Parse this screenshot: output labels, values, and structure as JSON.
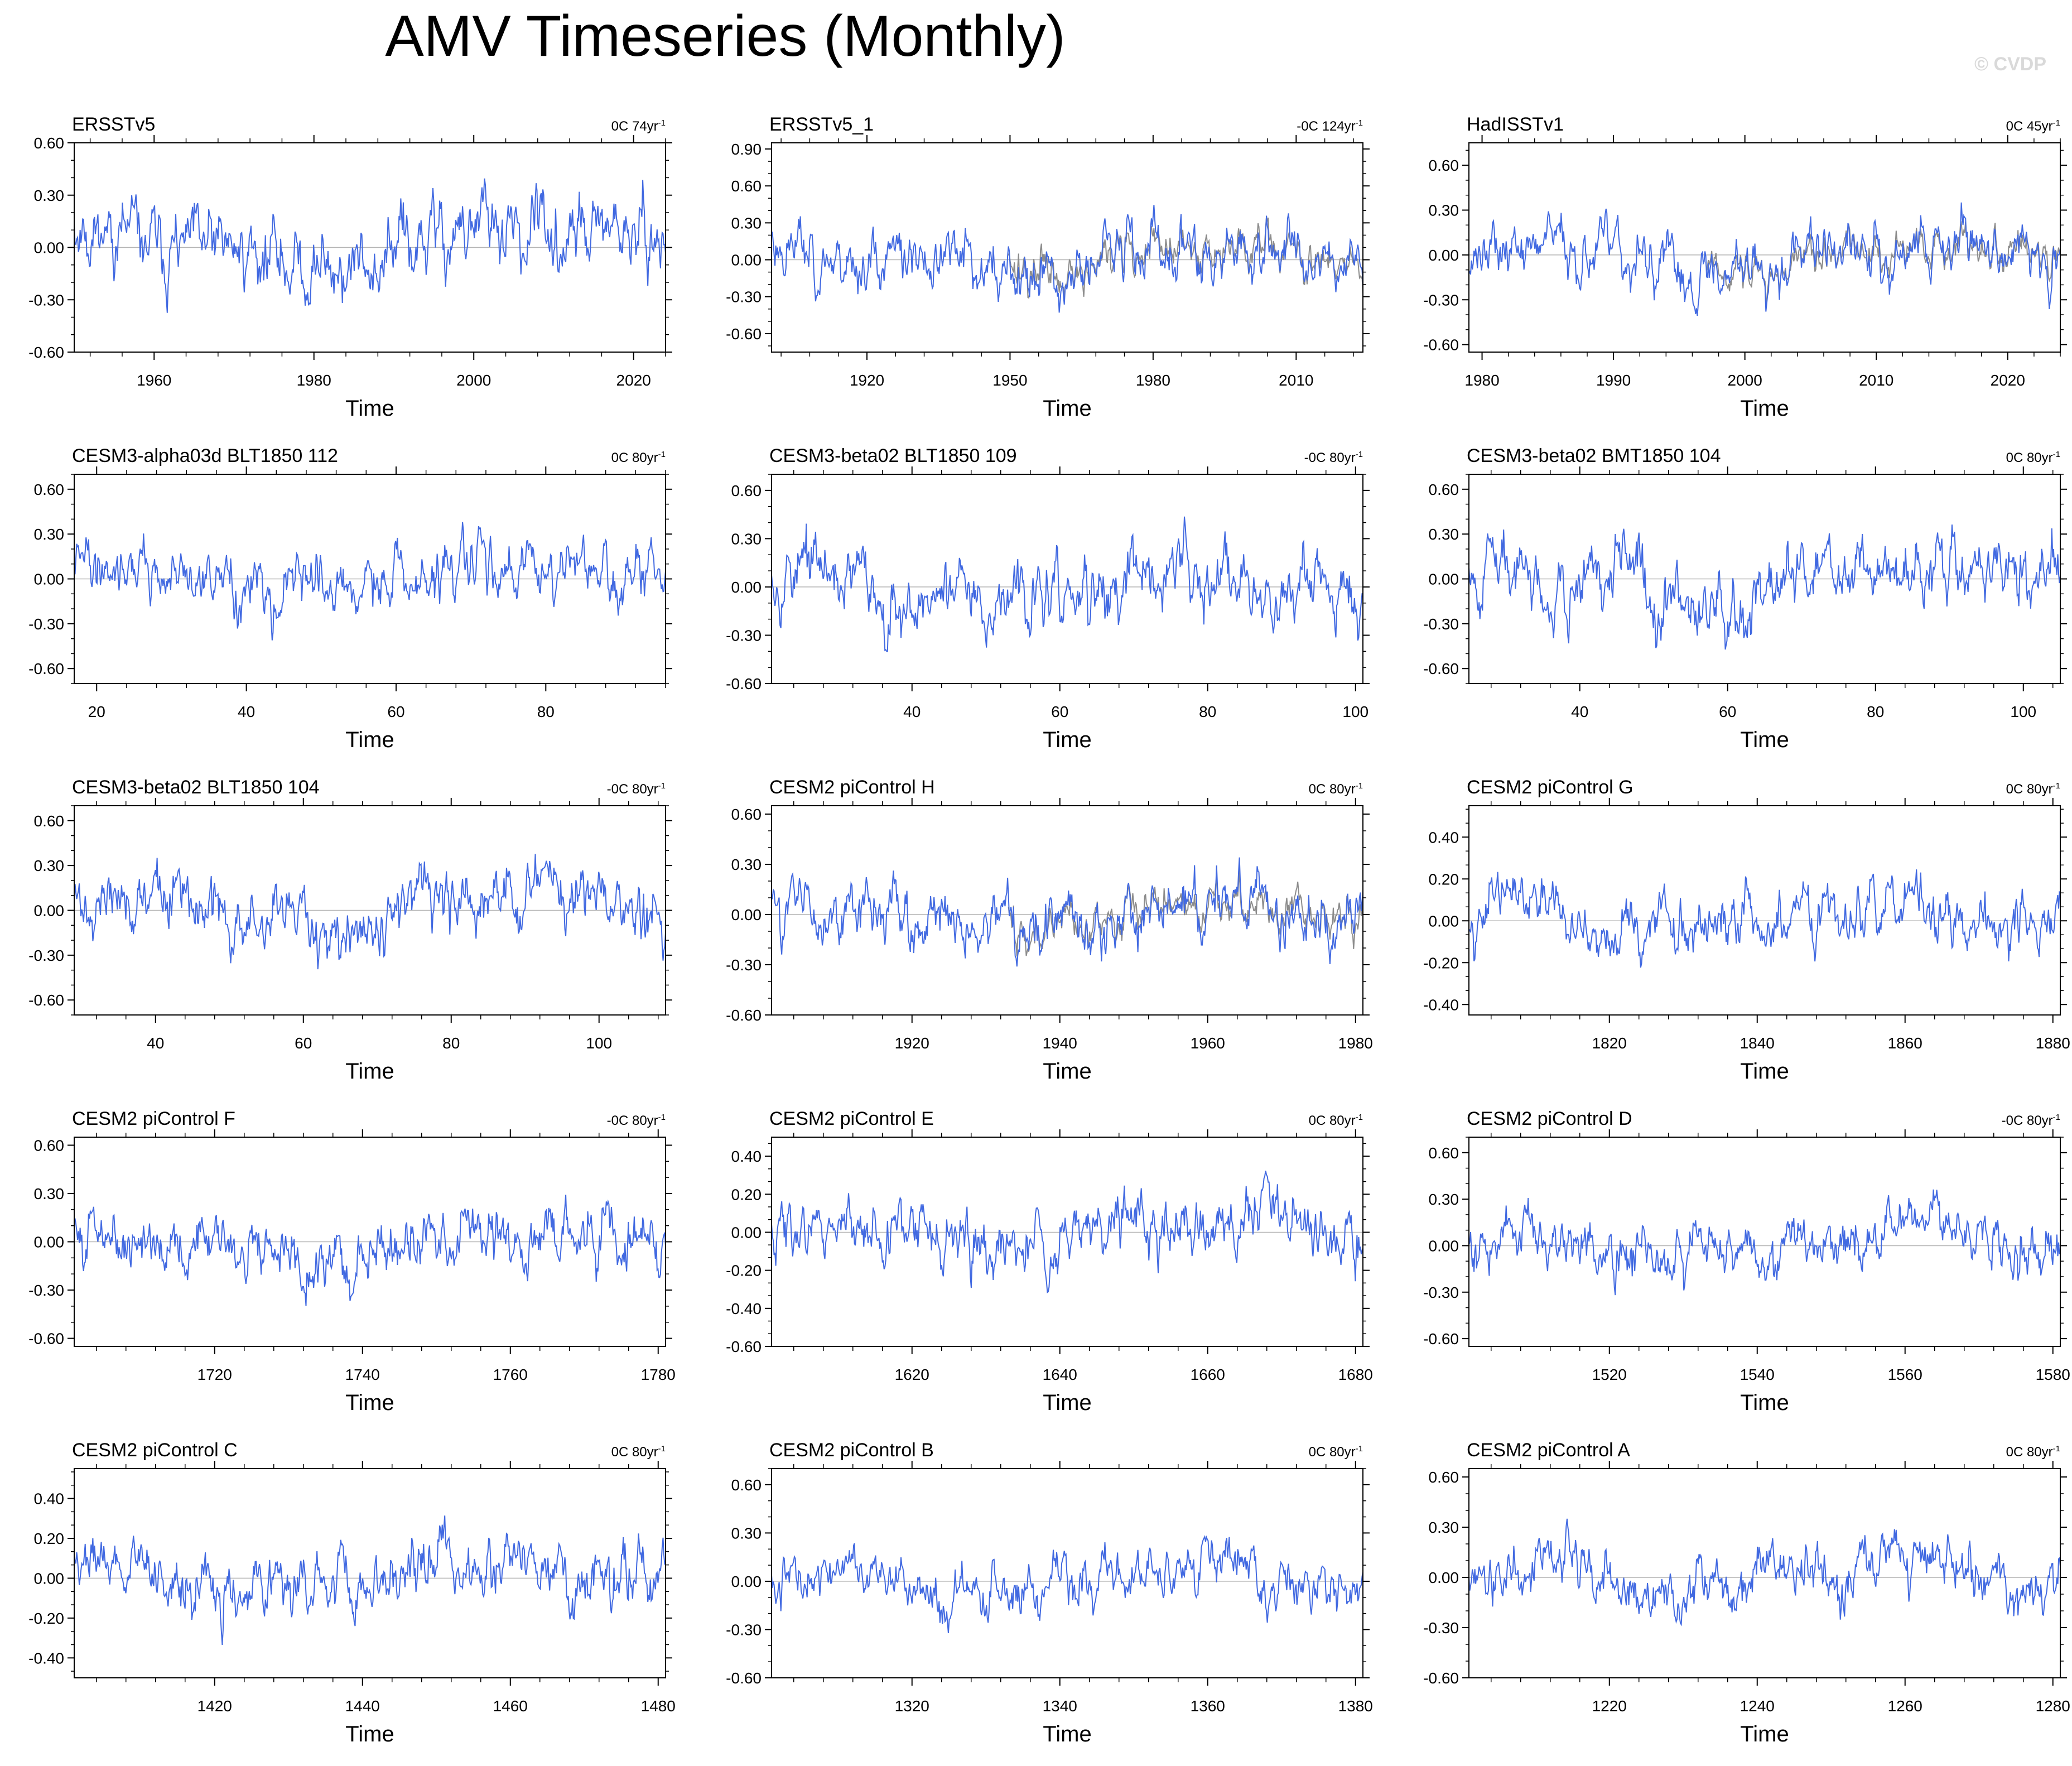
{
  "title": "AMV Timeseries (Monthly)",
  "watermark": "© CVDP",
  "colors": {
    "series": "#4169e1",
    "observed": "#8c8c8c",
    "zero": "#b4b4b4",
    "axis": "#000000"
  },
  "chart_data": [
    {
      "type": "line",
      "name": "ERSSTv5",
      "trend": "0C 74yr",
      "trend_exp": "-1",
      "xlabel": "Time",
      "xlim": [
        1950,
        2024
      ],
      "xticks": [
        1960,
        1980,
        2000,
        2020
      ],
      "ylim": [
        -0.6,
        0.6
      ],
      "yticks": [
        -0.6,
        -0.3,
        0,
        0.3,
        0.6
      ],
      "ytick_labels": [
        "-0.60",
        "-0.30",
        "0.00",
        "0.30",
        "0.60"
      ],
      "amp": 0.2,
      "seed": 11,
      "overlay": false
    },
    {
      "type": "line",
      "name": "ERSSTv5_1",
      "trend": "-0C 124yr",
      "trend_exp": "-1",
      "xlabel": "Time",
      "xlim": [
        1900,
        2024
      ],
      "xticks": [
        1920,
        1950,
        1980,
        2010
      ],
      "ylim": [
        -0.75,
        0.95
      ],
      "yticks": [
        -0.6,
        -0.3,
        0,
        0.3,
        0.6,
        0.9
      ],
      "ytick_labels": [
        "-0.60",
        "-0.30",
        "0.00",
        "0.30",
        "0.60",
        "0.90"
      ],
      "amp": 0.22,
      "seed": 23,
      "overlay": true
    },
    {
      "type": "line",
      "name": "HadISSTv1",
      "trend": "0C 45yr",
      "trend_exp": "-1",
      "xlabel": "Time",
      "xlim": [
        1979,
        2024
      ],
      "xticks": [
        1980,
        1990,
        2000,
        2010,
        2020
      ],
      "ylim": [
        -0.65,
        0.75
      ],
      "yticks": [
        -0.6,
        -0.3,
        0,
        0.3,
        0.6
      ],
      "ytick_labels": [
        "-0.60",
        "-0.30",
        "0.00",
        "0.30",
        "0.60"
      ],
      "amp": 0.18,
      "seed": 37,
      "overlay": true
    },
    {
      "type": "line",
      "name": "CESM3-alpha03d BLT1850 112",
      "trend": "0C 80yr",
      "trend_exp": "-1",
      "xlabel": "Time",
      "xlim": [
        17,
        96
      ],
      "xticks": [
        20,
        40,
        60,
        80
      ],
      "ylim": [
        -0.7,
        0.7
      ],
      "yticks": [
        -0.6,
        -0.3,
        0,
        0.3,
        0.6
      ],
      "ytick_labels": [
        "-0.60",
        "-0.30",
        "0.00",
        "0.30",
        "0.60"
      ],
      "amp": 0.18,
      "seed": 41,
      "overlay": false
    },
    {
      "type": "line",
      "name": "CESM3-beta02 BLT1850 109",
      "trend": "-0C 80yr",
      "trend_exp": "-1",
      "xlabel": "Time",
      "xlim": [
        21,
        101
      ],
      "xticks": [
        40,
        60,
        80,
        100
      ],
      "ylim": [
        -0.6,
        0.7
      ],
      "yticks": [
        -0.6,
        -0.3,
        0,
        0.3,
        0.6
      ],
      "ytick_labels": [
        "-0.60",
        "-0.30",
        "0.00",
        "0.30",
        "0.60"
      ],
      "amp": 0.2,
      "seed": 53,
      "overlay": false
    },
    {
      "type": "line",
      "name": "CESM3-beta02 BMT1850 104",
      "trend": "0C 80yr",
      "trend_exp": "-1",
      "xlabel": "Time",
      "xlim": [
        25,
        105
      ],
      "xticks": [
        40,
        60,
        80,
        100
      ],
      "ylim": [
        -0.7,
        0.7
      ],
      "yticks": [
        -0.6,
        -0.3,
        0,
        0.3,
        0.6
      ],
      "ytick_labels": [
        "-0.60",
        "-0.30",
        "0.00",
        "0.30",
        "0.60"
      ],
      "amp": 0.2,
      "seed": 67,
      "overlay": false
    },
    {
      "type": "line",
      "name": "CESM3-beta02 BLT1850 104",
      "trend": "-0C 80yr",
      "trend_exp": "-1",
      "xlabel": "Time",
      "xlim": [
        29,
        109
      ],
      "xticks": [
        40,
        60,
        80,
        100
      ],
      "ylim": [
        -0.7,
        0.7
      ],
      "yticks": [
        -0.6,
        -0.3,
        0,
        0.3,
        0.6
      ],
      "ytick_labels": [
        "-0.60",
        "-0.30",
        "0.00",
        "0.30",
        "0.60"
      ],
      "amp": 0.2,
      "seed": 71,
      "overlay": false
    },
    {
      "type": "line",
      "name": "CESM2 piControl H",
      "trend": "0C 80yr",
      "trend_exp": "-1",
      "xlabel": "Time",
      "xlim": [
        1901,
        1981
      ],
      "xticks": [
        1920,
        1940,
        1960,
        1980
      ],
      "ylim": [
        -0.6,
        0.65
      ],
      "yticks": [
        -0.6,
        -0.3,
        0,
        0.3,
        0.6
      ],
      "ytick_labels": [
        "-0.60",
        "-0.30",
        "0.00",
        "0.30",
        "0.60"
      ],
      "amp": 0.17,
      "seed": 83,
      "overlay": true
    },
    {
      "type": "line",
      "name": "CESM2 piControl G",
      "trend": "0C 80yr",
      "trend_exp": "-1",
      "xlabel": "Time",
      "xlim": [
        1801,
        1881
      ],
      "xticks": [
        1820,
        1840,
        1860,
        1880
      ],
      "ylim": [
        -0.45,
        0.55
      ],
      "yticks": [
        -0.4,
        -0.2,
        0,
        0.2,
        0.4
      ],
      "ytick_labels": [
        "-0.40",
        "-0.20",
        "0.00",
        "0.20",
        "0.40"
      ],
      "amp": 0.13,
      "seed": 97,
      "overlay": false
    },
    {
      "type": "line",
      "name": "CESM2 piControl F",
      "trend": "-0C 80yr",
      "trend_exp": "-1",
      "xlabel": "Time",
      "xlim": [
        1701,
        1781
      ],
      "xticks": [
        1720,
        1740,
        1760,
        1780
      ],
      "ylim": [
        -0.65,
        0.65
      ],
      "yticks": [
        -0.6,
        -0.3,
        0,
        0.3,
        0.6
      ],
      "ytick_labels": [
        "-0.60",
        "-0.30",
        "0.00",
        "0.30",
        "0.60"
      ],
      "amp": 0.17,
      "seed": 101,
      "overlay": false
    },
    {
      "type": "line",
      "name": "CESM2 piControl E",
      "trend": "0C 80yr",
      "trend_exp": "-1",
      "xlabel": "Time",
      "xlim": [
        1601,
        1681
      ],
      "xticks": [
        1620,
        1640,
        1660,
        1680
      ],
      "ylim": [
        -0.6,
        0.5
      ],
      "yticks": [
        -0.6,
        -0.4,
        -0.2,
        0,
        0.2,
        0.4
      ],
      "ytick_labels": [
        "-0.60",
        "-0.40",
        "-0.20",
        "0.00",
        "0.20",
        "0.40"
      ],
      "amp": 0.15,
      "seed": 113,
      "overlay": false
    },
    {
      "type": "line",
      "name": "CESM2 piControl D",
      "trend": "-0C 80yr",
      "trend_exp": "-1",
      "xlabel": "Time",
      "xlim": [
        1501,
        1581
      ],
      "xticks": [
        1520,
        1540,
        1560,
        1580
      ],
      "ylim": [
        -0.65,
        0.7
      ],
      "yticks": [
        -0.6,
        -0.3,
        0,
        0.3,
        0.6
      ],
      "ytick_labels": [
        "-0.60",
        "-0.30",
        "0.00",
        "0.30",
        "0.60"
      ],
      "amp": 0.17,
      "seed": 127,
      "overlay": false
    },
    {
      "type": "line",
      "name": "CESM2 piControl C",
      "trend": "0C 80yr",
      "trend_exp": "-1",
      "xlabel": "Time",
      "xlim": [
        1401,
        1481
      ],
      "xticks": [
        1420,
        1440,
        1460,
        1480
      ],
      "ylim": [
        -0.5,
        0.55
      ],
      "yticks": [
        -0.4,
        -0.2,
        0,
        0.2,
        0.4
      ],
      "ytick_labels": [
        "-0.40",
        "-0.20",
        "0.00",
        "0.20",
        "0.40"
      ],
      "amp": 0.14,
      "seed": 131,
      "overlay": false
    },
    {
      "type": "line",
      "name": "CESM2 piControl B",
      "trend": "0C 80yr",
      "trend_exp": "-1",
      "xlabel": "Time",
      "xlim": [
        1301,
        1381
      ],
      "xticks": [
        1320,
        1340,
        1360,
        1380
      ],
      "ylim": [
        -0.6,
        0.7
      ],
      "yticks": [
        -0.6,
        -0.3,
        0,
        0.3,
        0.6
      ],
      "ytick_labels": [
        "-0.60",
        "-0.30",
        "0.00",
        "0.30",
        "0.60"
      ],
      "amp": 0.15,
      "seed": 137,
      "overlay": false
    },
    {
      "type": "line",
      "name": "CESM2 piControl A",
      "trend": "0C 80yr",
      "trend_exp": "-1",
      "xlabel": "Time",
      "xlim": [
        1201,
        1281
      ],
      "xticks": [
        1220,
        1240,
        1260,
        1280
      ],
      "ylim": [
        -0.6,
        0.65
      ],
      "yticks": [
        -0.6,
        -0.3,
        0,
        0.3,
        0.6
      ],
      "ytick_labels": [
        "-0.60",
        "-0.30",
        "0.00",
        "0.30",
        "0.60"
      ],
      "amp": 0.16,
      "seed": 149,
      "overlay": false
    }
  ]
}
